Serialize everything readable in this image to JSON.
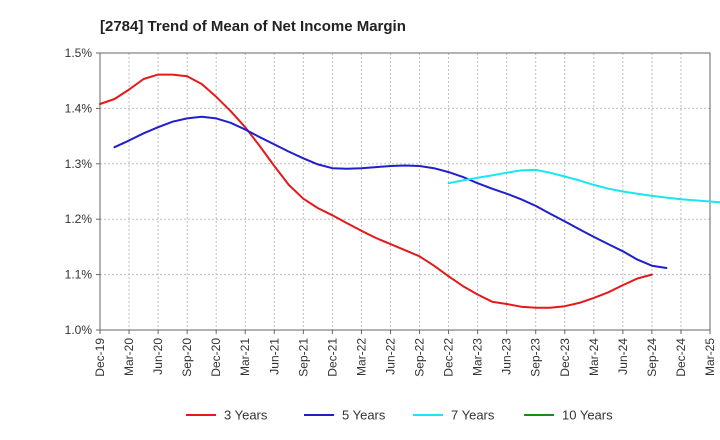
{
  "chart_data": {
    "type": "line",
    "title": "[2784]  Trend of Mean of Net Income Margin",
    "xlabel": "",
    "ylabel": "",
    "x_ticks": [
      "Dec-19",
      "Mar-20",
      "Jun-20",
      "Sep-20",
      "Dec-20",
      "Mar-21",
      "Jun-21",
      "Sep-21",
      "Dec-21",
      "Mar-22",
      "Jun-22",
      "Sep-22",
      "Dec-22",
      "Mar-23",
      "Jun-23",
      "Sep-23",
      "Dec-23",
      "Mar-24",
      "Jun-24",
      "Sep-24",
      "Dec-24",
      "Mar-25"
    ],
    "y_ticks": [
      "1.0%",
      "1.1%",
      "1.2%",
      "1.3%",
      "1.4%",
      "1.5%"
    ],
    "ylim": [
      1.0,
      1.5
    ],
    "grid": true,
    "legend_position": "bottom",
    "series": [
      {
        "name": "3 Years",
        "color": "#e31a1c",
        "start_index": 0,
        "values": [
          1.408,
          1.417,
          1.434,
          1.453,
          1.461,
          1.461,
          1.458,
          1.444,
          1.421,
          1.395,
          1.366,
          1.332,
          1.296,
          1.262,
          1.237,
          1.22,
          1.207,
          1.193,
          1.179,
          1.166,
          1.155,
          1.144,
          1.133,
          1.116,
          1.097,
          1.079,
          1.064,
          1.051,
          1.047,
          1.042,
          1.04,
          1.04,
          1.043,
          1.049,
          1.058,
          1.068,
          1.081,
          1.093,
          1.1
        ]
      },
      {
        "name": "5 Years",
        "color": "#1f1fcc",
        "start_index": 1,
        "values": [
          1.33,
          1.342,
          1.355,
          1.366,
          1.376,
          1.382,
          1.385,
          1.382,
          1.374,
          1.362,
          1.348,
          1.335,
          1.322,
          1.31,
          1.299,
          1.292,
          1.291,
          1.292,
          1.294,
          1.296,
          1.297,
          1.296,
          1.292,
          1.285,
          1.276,
          1.265,
          1.255,
          1.246,
          1.236,
          1.224,
          1.21,
          1.196,
          1.182,
          1.168,
          1.155,
          1.142,
          1.127,
          1.116,
          1.112
        ]
      },
      {
        "name": "7 Years",
        "color": "#18e6f0",
        "start_index": 24,
        "values": [
          1.265,
          1.27,
          1.275,
          1.279,
          1.284,
          1.288,
          1.289,
          1.284,
          1.277,
          1.27,
          1.262,
          1.255,
          1.25,
          1.246,
          1.242,
          1.239,
          1.236,
          1.234,
          1.232,
          1.23,
          1.228,
          1.226,
          1.224
        ]
      },
      {
        "name": "10 Years",
        "color": "#1a8c1a",
        "start_index": 0,
        "values": []
      }
    ]
  }
}
